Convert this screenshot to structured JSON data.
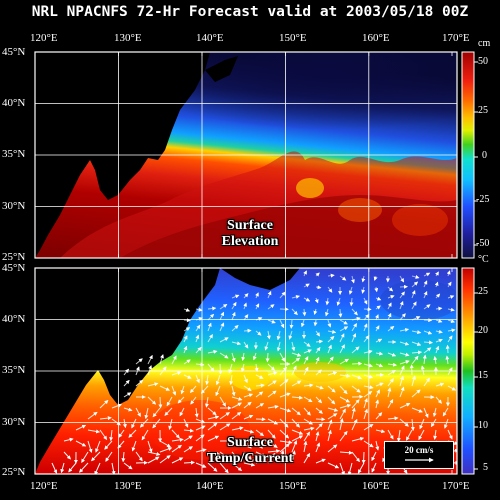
{
  "title": "NRL NPACNFS 72-Hr Forecast valid at 2003/05/18 00Z",
  "lon_labels": [
    "120°E",
    "130°E",
    "140°E",
    "150°E",
    "160°E",
    "170°E"
  ],
  "lat_labels": [
    "45°N",
    "40°N",
    "35°N",
    "30°N",
    "25°N"
  ],
  "top_panel": {
    "label_line1": "Surface",
    "label_line2": "Elevation",
    "unit": "cm",
    "colorbar_ticks": [
      "50",
      "25",
      "0",
      "-25",
      "-50"
    ],
    "colorbar_range": [
      -60,
      60
    ]
  },
  "bottom_panel": {
    "label_line1": "Surface",
    "label_line2": "Temp/Current",
    "unit": "°C",
    "colorbar_ticks": [
      "25",
      "20",
      "15",
      "10",
      "5"
    ],
    "colorbar_range": [
      4,
      27
    ],
    "scale_label": "20 cm/s"
  },
  "colors": {
    "land": "#000000",
    "grid": "#ffffff",
    "frame": "#ffffff",
    "vectors": "#ffffff"
  },
  "legend_colors": [
    "#2020c0",
    "#2060ff",
    "#1ea0ff",
    "#10e0e0",
    "#20c020",
    "#b0e020",
    "#ffff00",
    "#ffc000",
    "#ff8000",
    "#ff3000",
    "#e00000",
    "#900000"
  ]
}
